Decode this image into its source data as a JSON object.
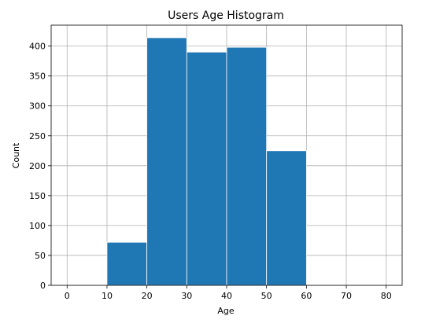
{
  "chart_data": {
    "type": "bar",
    "title": "Users Age Histogram",
    "xlabel": "Age",
    "ylabel": "Count",
    "bins": [
      {
        "start": 10,
        "end": 20,
        "count": 72
      },
      {
        "start": 20,
        "end": 30,
        "count": 414
      },
      {
        "start": 30,
        "end": 40,
        "count": 390
      },
      {
        "start": 40,
        "end": 50,
        "count": 398
      },
      {
        "start": 50,
        "end": 60,
        "count": 225
      }
    ],
    "xlim": [
      -4,
      84
    ],
    "ylim": [
      0,
      435
    ],
    "xticks": [
      0,
      10,
      20,
      30,
      40,
      50,
      60,
      70,
      80
    ],
    "yticks": [
      0,
      50,
      100,
      150,
      200,
      250,
      300,
      350,
      400
    ],
    "grid": true,
    "bar_color": "#1f77b4",
    "edge_color": "#ffffff"
  }
}
